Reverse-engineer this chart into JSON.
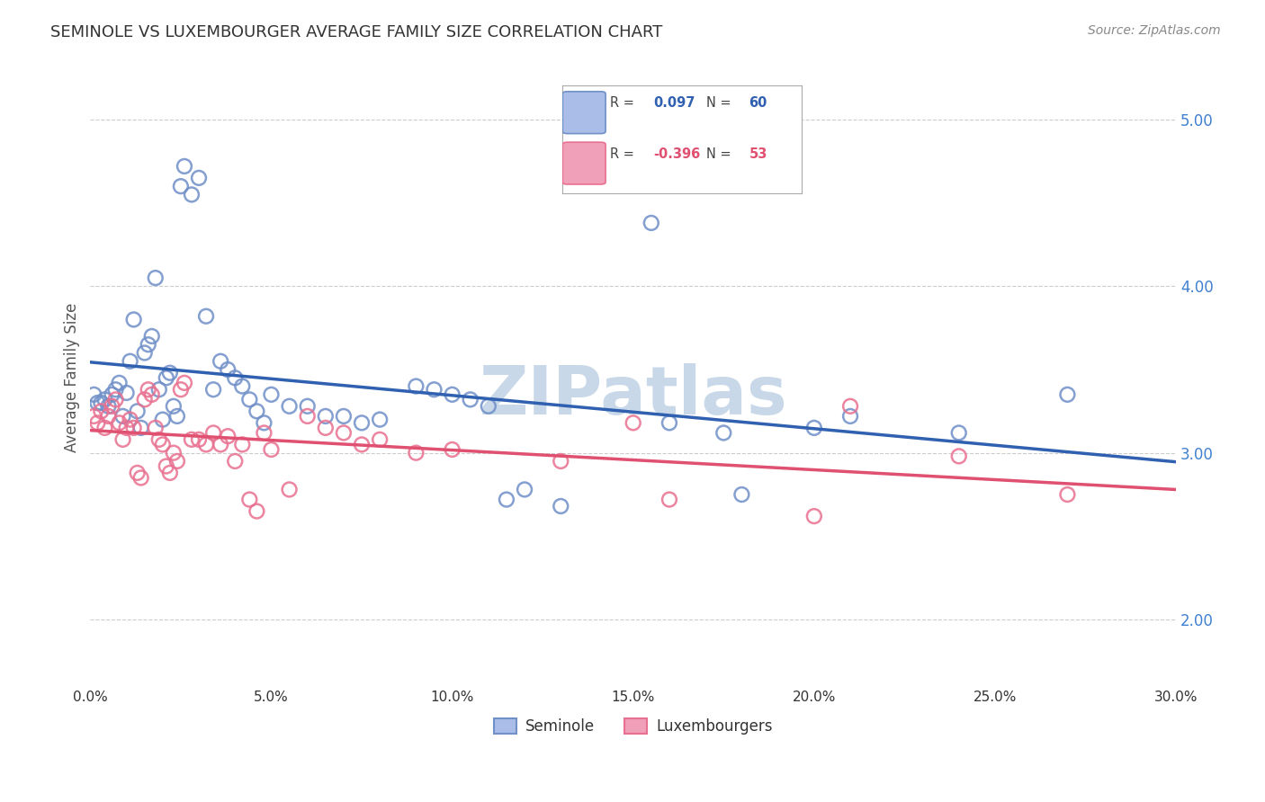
{
  "title": "SEMINOLE VS LUXEMBOURGER AVERAGE FAMILY SIZE CORRELATION CHART",
  "source": "Source: ZipAtlas.com",
  "ylabel": "Average Family Size",
  "yticks": [
    2.0,
    3.0,
    4.0,
    5.0
  ],
  "xlim": [
    0.0,
    0.3
  ],
  "ylim": [
    1.6,
    5.3
  ],
  "legend_blue_r_val": "0.097",
  "legend_blue_n_val": "60",
  "legend_pink_r_val": "-0.396",
  "legend_pink_n_val": "53",
  "legend_label_blue": "Seminole",
  "legend_label_pink": "Luxembourgers",
  "blue_color": "#7090c8",
  "pink_color": "#e87090",
  "blue_line_color": "#3060b0",
  "pink_line_color": "#e05070",
  "blue_scatter": [
    [
      0.001,
      3.35
    ],
    [
      0.002,
      3.3
    ],
    [
      0.003,
      3.3
    ],
    [
      0.004,
      3.32
    ],
    [
      0.005,
      3.28
    ],
    [
      0.006,
      3.35
    ],
    [
      0.007,
      3.38
    ],
    [
      0.008,
      3.42
    ],
    [
      0.009,
      3.22
    ],
    [
      0.01,
      3.36
    ],
    [
      0.011,
      3.55
    ],
    [
      0.012,
      3.8
    ],
    [
      0.013,
      3.25
    ],
    [
      0.014,
      3.15
    ],
    [
      0.015,
      3.6
    ],
    [
      0.016,
      3.65
    ],
    [
      0.017,
      3.7
    ],
    [
      0.018,
      4.05
    ],
    [
      0.019,
      3.38
    ],
    [
      0.02,
      3.2
    ],
    [
      0.021,
      3.45
    ],
    [
      0.022,
      3.48
    ],
    [
      0.023,
      3.28
    ],
    [
      0.024,
      3.22
    ],
    [
      0.025,
      4.6
    ],
    [
      0.026,
      4.72
    ],
    [
      0.028,
      4.55
    ],
    [
      0.03,
      4.65
    ],
    [
      0.032,
      3.82
    ],
    [
      0.034,
      3.38
    ],
    [
      0.036,
      3.55
    ],
    [
      0.038,
      3.5
    ],
    [
      0.04,
      3.45
    ],
    [
      0.042,
      3.4
    ],
    [
      0.044,
      3.32
    ],
    [
      0.046,
      3.25
    ],
    [
      0.048,
      3.18
    ],
    [
      0.05,
      3.35
    ],
    [
      0.055,
      3.28
    ],
    [
      0.06,
      3.28
    ],
    [
      0.065,
      3.22
    ],
    [
      0.07,
      3.22
    ],
    [
      0.075,
      3.18
    ],
    [
      0.08,
      3.2
    ],
    [
      0.09,
      3.4
    ],
    [
      0.095,
      3.38
    ],
    [
      0.1,
      3.35
    ],
    [
      0.105,
      3.32
    ],
    [
      0.11,
      3.28
    ],
    [
      0.115,
      2.72
    ],
    [
      0.12,
      2.78
    ],
    [
      0.13,
      2.68
    ],
    [
      0.155,
      4.38
    ],
    [
      0.16,
      3.18
    ],
    [
      0.175,
      3.12
    ],
    [
      0.18,
      2.75
    ],
    [
      0.2,
      3.15
    ],
    [
      0.21,
      3.22
    ],
    [
      0.24,
      3.12
    ],
    [
      0.27,
      3.35
    ]
  ],
  "pink_scatter": [
    [
      0.001,
      3.22
    ],
    [
      0.002,
      3.18
    ],
    [
      0.003,
      3.25
    ],
    [
      0.004,
      3.15
    ],
    [
      0.005,
      3.22
    ],
    [
      0.006,
      3.28
    ],
    [
      0.007,
      3.32
    ],
    [
      0.008,
      3.18
    ],
    [
      0.009,
      3.08
    ],
    [
      0.01,
      3.15
    ],
    [
      0.011,
      3.2
    ],
    [
      0.012,
      3.15
    ],
    [
      0.013,
      2.88
    ],
    [
      0.014,
      2.85
    ],
    [
      0.015,
      3.32
    ],
    [
      0.016,
      3.38
    ],
    [
      0.017,
      3.35
    ],
    [
      0.018,
      3.15
    ],
    [
      0.019,
      3.08
    ],
    [
      0.02,
      3.05
    ],
    [
      0.021,
      2.92
    ],
    [
      0.022,
      2.88
    ],
    [
      0.023,
      3.0
    ],
    [
      0.024,
      2.95
    ],
    [
      0.025,
      3.38
    ],
    [
      0.026,
      3.42
    ],
    [
      0.028,
      3.08
    ],
    [
      0.03,
      3.08
    ],
    [
      0.032,
      3.05
    ],
    [
      0.034,
      3.12
    ],
    [
      0.036,
      3.05
    ],
    [
      0.038,
      3.1
    ],
    [
      0.04,
      2.95
    ],
    [
      0.042,
      3.05
    ],
    [
      0.044,
      2.72
    ],
    [
      0.046,
      2.65
    ],
    [
      0.048,
      3.12
    ],
    [
      0.05,
      3.02
    ],
    [
      0.055,
      2.78
    ],
    [
      0.06,
      3.22
    ],
    [
      0.065,
      3.15
    ],
    [
      0.07,
      3.12
    ],
    [
      0.075,
      3.05
    ],
    [
      0.08,
      3.08
    ],
    [
      0.09,
      3.0
    ],
    [
      0.1,
      3.02
    ],
    [
      0.13,
      2.95
    ],
    [
      0.15,
      3.18
    ],
    [
      0.16,
      2.72
    ],
    [
      0.2,
      2.62
    ],
    [
      0.21,
      3.28
    ],
    [
      0.24,
      2.98
    ],
    [
      0.27,
      2.75
    ]
  ],
  "watermark": "ZIPatlas",
  "watermark_color": "#c8d8e8",
  "background_color": "#ffffff",
  "grid_color": "#cccccc"
}
